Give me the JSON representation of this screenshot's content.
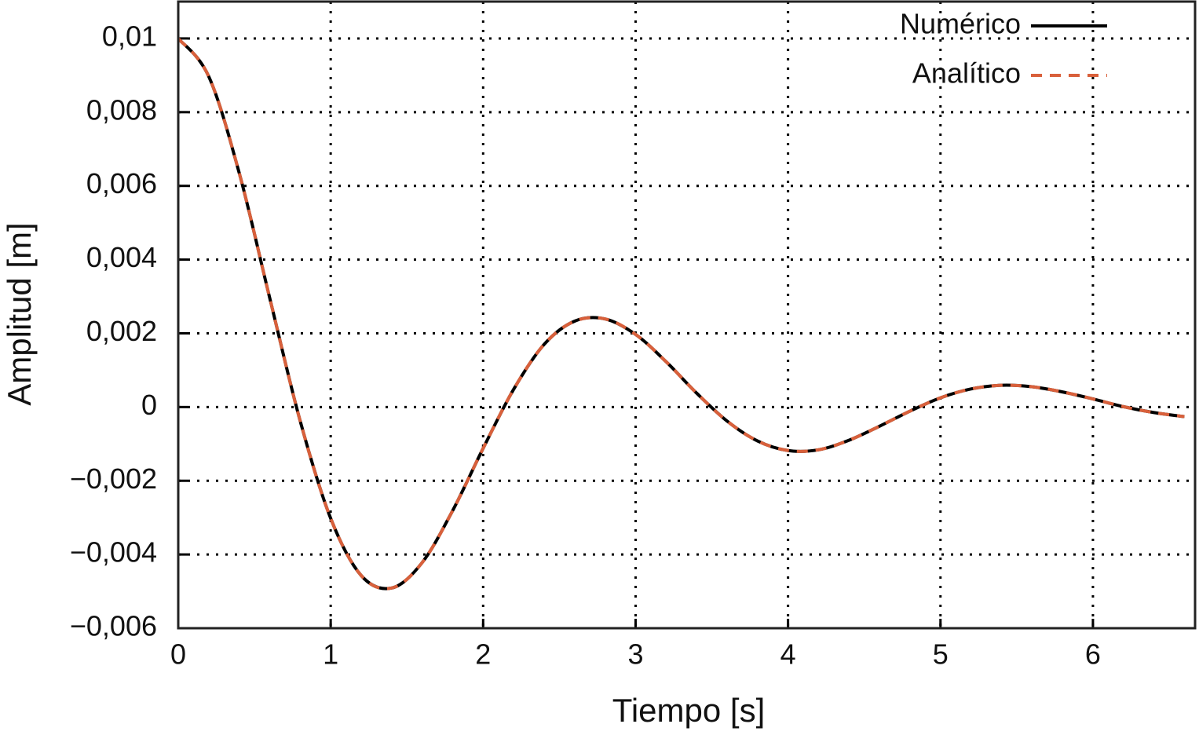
{
  "chart_data": {
    "type": "line",
    "xlabel": "Tiempo [s]",
    "ylabel": "Amplitud [m]",
    "x": [
      0,
      0.2,
      0.4,
      0.6,
      0.8,
      1.0,
      1.2,
      1.4,
      1.6,
      1.8,
      2.0,
      2.2,
      2.4,
      2.6,
      2.8,
      3.0,
      3.2,
      3.4,
      3.6,
      3.8,
      4.0,
      4.2,
      4.4,
      4.6,
      4.8,
      5.0,
      5.2,
      5.4,
      5.6,
      5.8,
      6.0,
      6.2,
      6.4,
      6.6
    ],
    "series": [
      {
        "name": "Numérico",
        "color": "#000000",
        "dash": false,
        "values": [
          0.01,
          0.00897,
          0.00635,
          0.00296,
          -0.00038,
          -0.00302,
          -0.00457,
          -0.00491,
          -0.00422,
          -0.00281,
          -0.00112,
          0.00048,
          0.0017,
          0.00233,
          0.00239,
          0.00197,
          0.00123,
          0.00038,
          -0.00038,
          -0.00092,
          -0.00118,
          -0.00116,
          -0.0009,
          -0.00052,
          -0.00011,
          0.00025,
          0.00049,
          0.00059,
          0.00055,
          0.00041,
          0.00022,
          1e-05,
          -0.00015,
          -0.00026
        ]
      },
      {
        "name": "Analítico",
        "color": "#d9603b",
        "dash": true,
        "values": [
          0.01,
          0.00897,
          0.00635,
          0.00296,
          -0.00038,
          -0.00302,
          -0.00457,
          -0.00491,
          -0.00422,
          -0.00281,
          -0.00112,
          0.00048,
          0.0017,
          0.00233,
          0.00239,
          0.00197,
          0.00123,
          0.00038,
          -0.00038,
          -0.00092,
          -0.00118,
          -0.00116,
          -0.0009,
          -0.00052,
          -0.00011,
          0.00025,
          0.00049,
          0.00059,
          0.00055,
          0.00041,
          0.00022,
          1e-05,
          -0.00015,
          -0.00026
        ]
      }
    ],
    "xlim": [
      0,
      6.67
    ],
    "ylim": [
      -0.006,
      0.011
    ],
    "xticks": [
      0,
      1,
      2,
      3,
      4,
      5,
      6
    ],
    "yticks": [
      {
        "value": -0.006,
        "label": "−0,006"
      },
      {
        "value": -0.004,
        "label": "−0,004"
      },
      {
        "value": -0.002,
        "label": "−0,002"
      },
      0,
      {
        "value": 0.002,
        "label": "0,002"
      },
      {
        "value": 0.004,
        "label": "0,004"
      },
      {
        "value": 0.006,
        "label": "0,006"
      },
      {
        "value": 0.008,
        "label": "0,008"
      },
      {
        "value": 0.01,
        "label": "0,01"
      }
    ],
    "grid": true,
    "legend": "upper right"
  }
}
